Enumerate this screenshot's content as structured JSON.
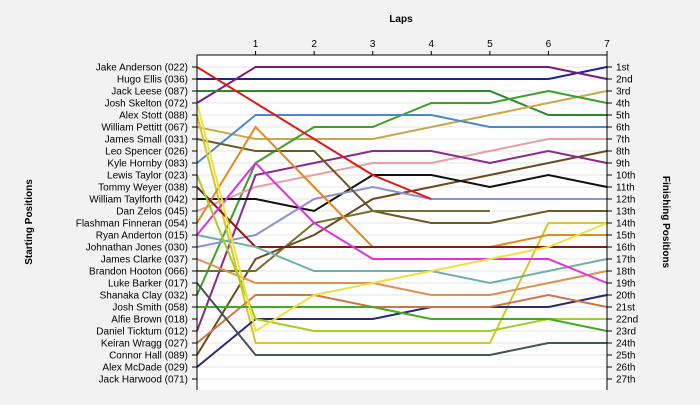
{
  "chart_data": {
    "type": "line",
    "title": "",
    "xlabel": "Laps",
    "ylabel_left": "Starting Positions",
    "ylabel_right": "Finishing Positions",
    "x": [
      0,
      1,
      2,
      3,
      4,
      5,
      6,
      7
    ],
    "x_tick_labels": [
      "1",
      "2",
      "3",
      "4",
      "5",
      "6",
      "7"
    ],
    "ylim": [
      1,
      27
    ],
    "grid": "horizontal",
    "y_inverted": true,
    "starting_grid": [
      "Jake Anderson (022)",
      "Hugo Ellis (036)",
      "Jack Leese (087)",
      "Josh Skelton (072)",
      "Alex Stott (088)",
      "William Pettitt (067)",
      "James Small (031)",
      "Leo Spencer (026)",
      "Kyle Hornby (083)",
      "Lewis Taylor (023)",
      "Tommy Weyer (038)",
      "William Taylforth (042)",
      "Dan Zelos (045)",
      "Flashman Finneran (054)",
      "Ryan Anderton (015)",
      "Johnathan Jones (030)",
      "James Clarke (037)",
      "Brandon Hooton (066)",
      "Luke Barker (017)",
      "Shanaka Clay (032)",
      "Josh Smith (058)",
      "Alfie Brown (018)",
      "Daniel Ticktum (012)",
      "Keiran Wragg (027)",
      "Connor Hall (089)",
      "Alex McDade (029)",
      "Jack Harwood (071)"
    ],
    "finishing_labels": [
      "1st",
      "2nd",
      "3rd",
      "4th",
      "5th",
      "6th",
      "7th",
      "8th",
      "9th",
      "10th",
      "11th",
      "12th",
      "13th",
      "14th",
      "15th",
      "16th",
      "17th",
      "18th",
      "19th",
      "20th",
      "21st",
      "22nd",
      "23rd",
      "24th",
      "25th",
      "26th",
      "27th"
    ],
    "series": [
      {
        "color": "#1f1fa0",
        "values": [
          2,
          2,
          2,
          2,
          2,
          2,
          2,
          1
        ]
      },
      {
        "color": "#7a1a7a",
        "values": [
          4,
          1,
          1,
          1,
          1,
          1,
          1,
          2
        ]
      },
      {
        "color": "#2a8a2a",
        "values": [
          3,
          3,
          3,
          3,
          3,
          3,
          5,
          5
        ]
      },
      {
        "color": "#c8a84a",
        "values": [
          6,
          7,
          7,
          7,
          6,
          5,
          4,
          3
        ]
      },
      {
        "color": "#3ca02a",
        "values": [
          20,
          9,
          6,
          6,
          4,
          4,
          3,
          4
        ]
      },
      {
        "color": "#4a88d0",
        "values": [
          9,
          5,
          5,
          5,
          5,
          6,
          6,
          6
        ]
      },
      {
        "color": "#e8a0a0",
        "values": [
          13,
          11,
          10,
          9,
          9,
          8,
          7,
          7
        ]
      },
      {
        "color": "#6b4a1e",
        "values": [
          25,
          17,
          15,
          12,
          11,
          10,
          9,
          8
        ]
      },
      {
        "color": "#8a2a8a",
        "values": [
          23,
          10,
          9,
          8,
          8,
          9,
          8,
          9
        ]
      },
      {
        "color": "#111111",
        "values": [
          12,
          12,
          13,
          10,
          10,
          11,
          10,
          11
        ]
      },
      {
        "color": "#9090d0",
        "values": [
          16,
          15,
          12,
          11,
          12,
          12,
          12,
          12
        ]
      },
      {
        "color": "#6b5a24",
        "values": [
          7,
          8,
          8,
          13,
          14,
          14,
          13,
          13
        ]
      },
      {
        "color": "#707030",
        "values": [
          18,
          18,
          14,
          13,
          13,
          13,
          null,
          null
        ]
      },
      {
        "color": "#d4c828",
        "values": [
          5,
          24,
          24,
          24,
          24,
          24,
          14,
          14
        ]
      },
      {
        "color": "#e08a20",
        "values": [
          14,
          6,
          11,
          16,
          16,
          16,
          15,
          15
        ]
      },
      {
        "color": "#8a1a1a",
        "values": [
          11,
          16,
          16,
          16,
          16,
          16,
          16,
          16
        ]
      },
      {
        "color": "#e01818",
        "values": [
          1,
          4,
          7,
          10,
          12,
          null,
          null,
          null
        ]
      },
      {
        "color": "#70b0a8",
        "values": [
          15,
          16,
          18,
          18,
          18,
          19,
          18,
          17
        ]
      },
      {
        "color": "#e09050",
        "values": [
          17,
          19,
          19,
          19,
          20,
          20,
          19,
          18
        ]
      },
      {
        "color": "#e030e0",
        "values": [
          15,
          9,
          14,
          17,
          17,
          17,
          17,
          19
        ]
      },
      {
        "color": "#2a2a70",
        "values": [
          26,
          22,
          22,
          22,
          21,
          21,
          21,
          20
        ]
      },
      {
        "color": "#c87848",
        "values": [
          24,
          20,
          20,
          21,
          21,
          21,
          20,
          21
        ]
      },
      {
        "color": "#a0d020",
        "values": [
          10,
          22,
          23,
          23,
          23,
          23,
          22,
          22
        ]
      },
      {
        "color": "#44aa22",
        "values": [
          21,
          21,
          21,
          21,
          22,
          22,
          22,
          23
        ]
      },
      {
        "color": "#f0e040",
        "values": [
          4,
          23,
          20,
          19,
          18,
          17,
          16,
          14
        ]
      },
      {
        "color": "#445555",
        "values": [
          19,
          25,
          25,
          25,
          25,
          25,
          24,
          24
        ]
      }
    ]
  }
}
